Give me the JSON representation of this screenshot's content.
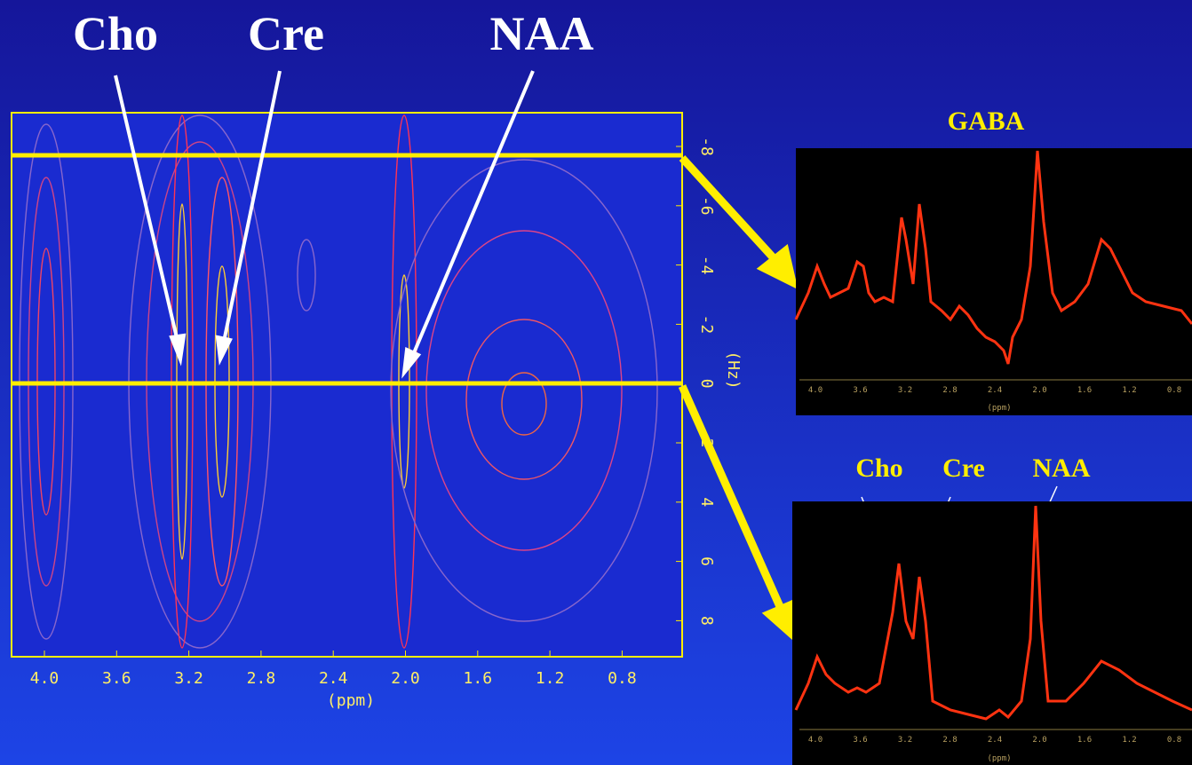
{
  "labels": [
    "Cho",
    "Cre",
    "NAA"
  ],
  "contour": {
    "x_label": "(ppm)",
    "x_ticks": [
      "4.0",
      "3.6",
      "3.2",
      "2.8",
      "2.4",
      "2.0",
      "1.6",
      "1.2",
      "0.8"
    ],
    "y_label": "(Hz)",
    "y_ticks": [
      "-8",
      "-6",
      "-4",
      "-2",
      "0",
      "2",
      "4",
      "6",
      "8"
    ]
  },
  "spectrum_top": {
    "title": "GABA",
    "x_label": "(ppm)",
    "x_ticks": [
      "4.0",
      "3.6",
      "3.2",
      "2.8",
      "2.4",
      "2.0",
      "1.6",
      "1.2",
      "0.8"
    ]
  },
  "spectrum_bottom": {
    "peak_labels": [
      "Cho",
      "Cre",
      "NAA"
    ],
    "x_label": "(ppm)",
    "x_ticks": [
      "4.0",
      "3.6",
      "3.2",
      "2.8",
      "2.4",
      "2.0",
      "1.6",
      "1.2",
      "0.8"
    ]
  }
}
